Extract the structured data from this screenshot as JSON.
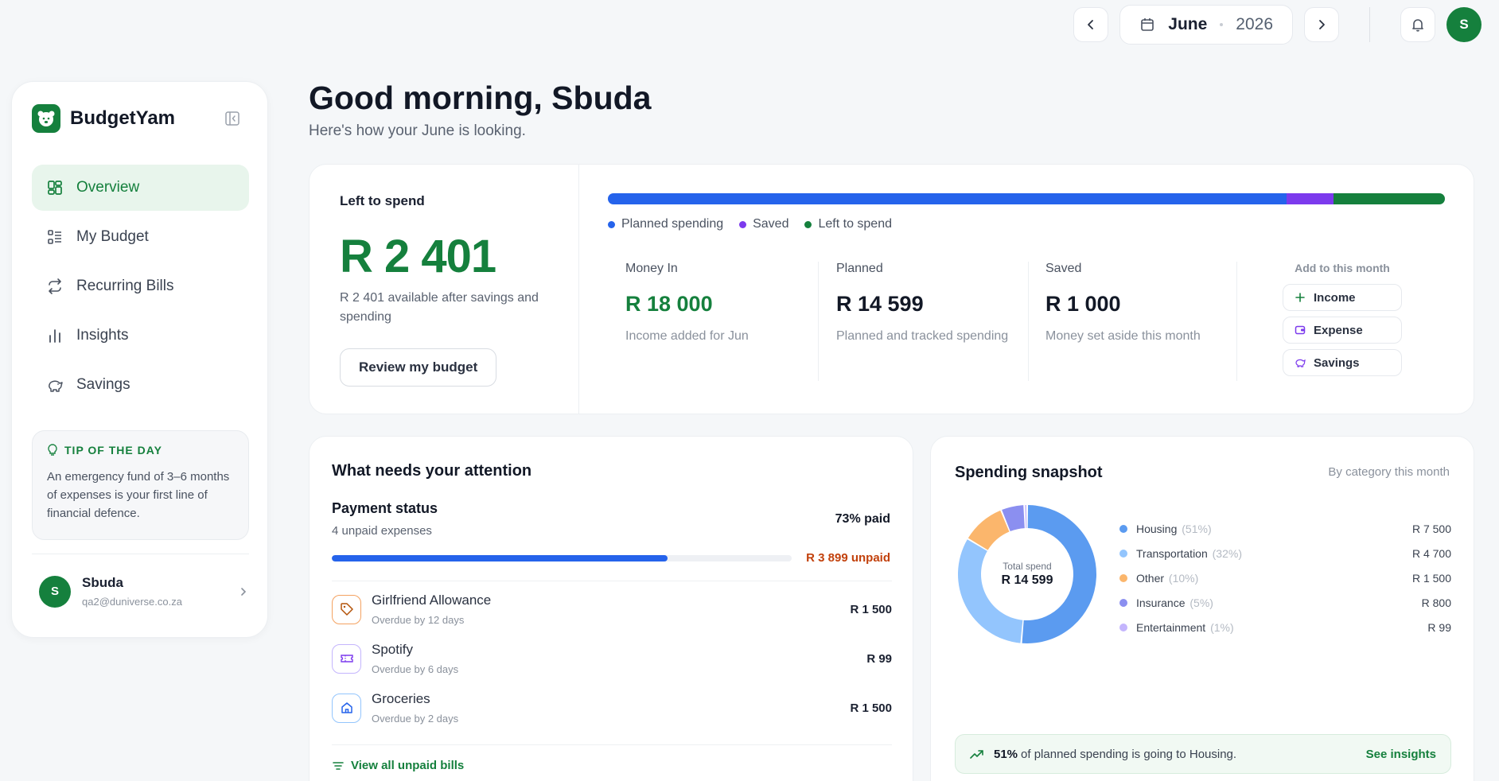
{
  "topbar": {
    "month": "June",
    "year": "2026",
    "avatar_initial": "S"
  },
  "sidebar": {
    "brand": "BudgetYam",
    "items": [
      {
        "label": "Overview",
        "icon": "grid-icon",
        "active": true
      },
      {
        "label": "My Budget",
        "icon": "list-icon"
      },
      {
        "label": "Recurring Bills",
        "icon": "repeat-icon"
      },
      {
        "label": "Insights",
        "icon": "bar-chart-icon"
      },
      {
        "label": "Savings",
        "icon": "piggy-bank-icon"
      }
    ],
    "tip": {
      "title": "TIP OF THE DAY",
      "body": "An emergency fund of 3–6 months of expenses is your first line of financial defence."
    },
    "user": {
      "initial": "S",
      "name": "Sbuda",
      "email": "qa2@duniverse.co.za"
    }
  },
  "header": {
    "greeting": "Good morning, Sbuda",
    "subtitle": "Here's how your June is looking."
  },
  "summary": {
    "left_label": "Left to spend",
    "left_value": "R 2 401",
    "left_desc": "R 2 401 available after savings and spending",
    "review_button": "Review my budget",
    "bar": {
      "planned_fraction": 0.811,
      "saved_fraction": 0.056,
      "left_fraction": 0.133
    },
    "legend": [
      "Planned spending",
      "Saved",
      "Left to spend"
    ],
    "stats": [
      {
        "label": "Money In",
        "value": "R 18 000",
        "desc": "Income added for Jun",
        "color": "#15803d"
      },
      {
        "label": "Planned",
        "value": "R 14 599",
        "desc": "Planned and tracked spending",
        "color": "#121826"
      },
      {
        "label": "Saved",
        "value": "R 1 000",
        "desc": "Money set aside this month",
        "color": "#121826"
      }
    ],
    "add": {
      "title": "Add to this month",
      "buttons": [
        "Income",
        "Expense",
        "Savings"
      ]
    }
  },
  "colors": {
    "brand_green": "#15803d",
    "planned_blue": "#2563eb",
    "saved_purple": "#7c3aed",
    "left_green": "#15803d",
    "unpaid_orange": "#c2410c"
  },
  "attention": {
    "title": "What needs your attention",
    "payment_title": "Payment status",
    "payment_sub": "4 unpaid expenses",
    "paid_label": "73% paid",
    "paid_fraction": 0.73,
    "unpaid_label": "R 3 899 unpaid",
    "bills": [
      {
        "name": "Girlfriend Allowance",
        "sub": "Overdue by 12 days",
        "amount": "R 1 500",
        "icon": "tag-icon"
      },
      {
        "name": "Spotify",
        "sub": "Overdue by 6 days",
        "amount": "R 99",
        "icon": "ticket-icon"
      },
      {
        "name": "Groceries",
        "sub": "Overdue by 2 days",
        "amount": "R 1 500",
        "icon": "home-icon"
      }
    ],
    "view_all": "View all unpaid bills"
  },
  "snapshot": {
    "title": "Spending snapshot",
    "subtitle": "By category this month",
    "total_label": "Total spend",
    "total_value": "R 14 599",
    "categories": [
      {
        "name": "Housing",
        "pct": "(51%)",
        "amount": "R 7 500",
        "value": 7500,
        "color": "#5b9bf0"
      },
      {
        "name": "Transportation",
        "pct": "(32%)",
        "amount": "R 4 700",
        "value": 4700,
        "color": "#93c5fd"
      },
      {
        "name": "Other",
        "pct": "(10%)",
        "amount": "R 1 500",
        "value": 1500,
        "color": "#fbb66c"
      },
      {
        "name": "Insurance",
        "pct": "(5%)",
        "amount": "R 800",
        "value": 800,
        "color": "#8b8ff0"
      },
      {
        "name": "Entertainment",
        "pct": "(1%)",
        "amount": "R 99",
        "value": 99,
        "color": "#c4b5fd"
      }
    ],
    "banner_pct": "51%",
    "banner_text": "of planned spending is going to Housing.",
    "banner_link": "See insights"
  }
}
